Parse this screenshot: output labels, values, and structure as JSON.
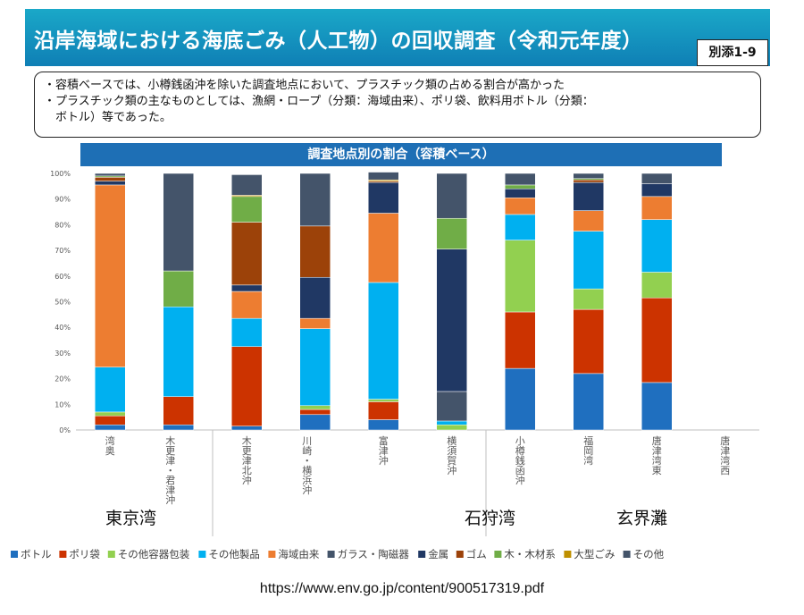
{
  "header": {
    "title": "沿岸海域における海底ごみ（人工物）の回収調査（令和元年度）",
    "badge": "別添1-9"
  },
  "summary": {
    "lines": [
      "・容積ベースでは、小樽銭函沖を除いた調査地点において、プラスチック類の占める割合が高かった",
      "・プラスチック類の主なものとしては、漁網・ロープ（分類：海域由来）、ポリ袋、飲料用ボトル（分類：",
      "　ボトル）等であった。"
    ]
  },
  "chart_data": {
    "type": "bar",
    "stacked": true,
    "title": "調査地点別の割合（容積ベース）",
    "ylim": [
      0,
      100
    ],
    "y_ticks": [
      "0%",
      "10%",
      "20%",
      "30%",
      "40%",
      "50%",
      "60%",
      "70%",
      "80%",
      "90%",
      "100%"
    ],
    "categories": [
      "湾奥",
      "木更津・君津沖",
      "木更津北沖",
      "川崎・横浜沖",
      "富津沖",
      "横須賀沖",
      "小樽銭函沖",
      "福岡湾",
      "唐津湾東",
      "唐津湾西"
    ],
    "category_labels": [
      [
        "湾",
        "奥"
      ],
      [
        "木",
        "更",
        "津",
        "・",
        "君",
        "津",
        "沖"
      ],
      [
        "木",
        "更",
        "津",
        "北",
        "沖"
      ],
      [
        "川",
        "崎",
        "・",
        "横",
        "浜",
        "沖"
      ],
      [
        "富",
        "津",
        "沖"
      ],
      [
        "横",
        "須",
        "賀",
        "沖"
      ],
      [
        "小",
        "樽",
        "銭",
        "函",
        "沖"
      ],
      [
        "福",
        "岡",
        "湾"
      ],
      [
        "唐",
        "津",
        "湾",
        "東"
      ],
      [
        "唐",
        "津",
        "湾",
        "西"
      ]
    ],
    "groups": [
      {
        "label": "東京湾"
      },
      {
        "label": "石狩湾"
      },
      {
        "label": "玄界灘"
      }
    ],
    "series": [
      {
        "name": "ボトル",
        "color": "#1f6fbf",
        "values": [
          2,
          2,
          1.5,
          6,
          4,
          0,
          24,
          22,
          18.5,
          0
        ]
      },
      {
        "name": "ポリ袋",
        "color": "#cc3300",
        "values": [
          3.5,
          11,
          31,
          2,
          7,
          0,
          22,
          25,
          33,
          0
        ]
      },
      {
        "name": "その他容器包装",
        "color": "#92d050",
        "values": [
          1.5,
          0,
          0,
          1.5,
          1,
          2,
          28,
          8,
          10,
          0
        ]
      },
      {
        "name": "その他製品",
        "color": "#00b0f0",
        "values": [
          17.5,
          35,
          11,
          30,
          45.5,
          1.5,
          10,
          22.5,
          20.5,
          0
        ]
      },
      {
        "name": "海域由来",
        "color": "#ed7d31",
        "values": [
          71,
          0,
          10.5,
          4,
          27,
          0,
          6.5,
          8,
          9,
          0
        ]
      },
      {
        "name": "ガラス・陶磁器",
        "color": "#44546a",
        "values": [
          0,
          0,
          0,
          0,
          0,
          11.5,
          0,
          0,
          0,
          0
        ]
      },
      {
        "name": "金属",
        "color": "#203864",
        "values": [
          1.5,
          0,
          2.5,
          16,
          12,
          55.5,
          3.5,
          11,
          5,
          0
        ]
      },
      {
        "name": "ゴム",
        "color": "#9c4209",
        "values": [
          1.5,
          0,
          24.5,
          20,
          0.5,
          0,
          0,
          1,
          0,
          0
        ]
      },
      {
        "name": "木・木材系",
        "color": "#70ad47",
        "values": [
          0.5,
          14,
          10,
          0,
          0,
          12,
          1.5,
          0.5,
          0,
          0
        ]
      },
      {
        "name": "大型ごみ",
        "color": "#bf9000",
        "values": [
          0,
          0,
          0.5,
          0,
          0.5,
          0,
          0,
          0,
          0,
          0
        ]
      },
      {
        "name": "その他",
        "color": "#44546a",
        "values": [
          1,
          38,
          8,
          20.5,
          3,
          17.5,
          4.5,
          2,
          4,
          0
        ]
      }
    ]
  },
  "source_url": "https://www.env.go.jp/content/900517319.pdf"
}
